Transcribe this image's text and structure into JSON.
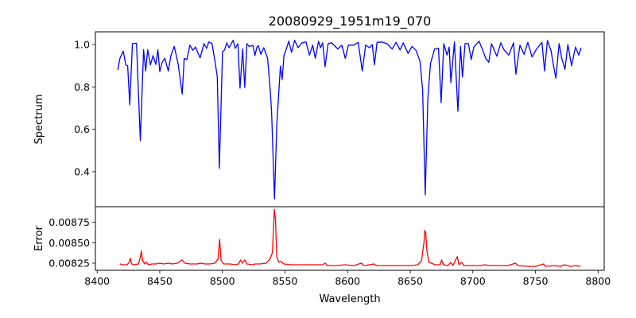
{
  "chart_data": [
    {
      "type": "line",
      "title": "20080929_1951m19_070",
      "xlabel": "",
      "ylabel": "Spectrum",
      "xlim": [
        8398.6,
        8804.9
      ],
      "ylim": [
        0.235,
        1.06
      ],
      "grid": false,
      "color": "#0000ff",
      "yticks": [
        0.4,
        0.6,
        0.8,
        1.0
      ],
      "ytick_labels": [
        "0.4",
        "0.6",
        "0.8",
        "1.0"
      ],
      "series": [
        {
          "name": "Spectrum",
          "x": [
            8416.5,
            8418.2,
            8420.8,
            8422.9,
            8424.4,
            8426.0,
            8428.2,
            8431.4,
            8434.5,
            8437.1,
            8438.7,
            8440.4,
            8442.5,
            8444.7,
            8446.8,
            8448.5,
            8450.0,
            8451.9,
            8454.0,
            8456.8,
            8458.9,
            8461.6,
            8464.6,
            8467.9,
            8469.5,
            8471.6,
            8474.1,
            8476.4,
            8478.5,
            8482.2,
            8485.3,
            8487.4,
            8489.1,
            8491.7,
            8494.4,
            8495.9,
            8497.6,
            8500.1,
            8501.8,
            8503.5,
            8505.4,
            8508.6,
            8510.3,
            8512.4,
            8514.1,
            8516.2,
            8517.9,
            8519.6,
            8521.3,
            8524.4,
            8526.0,
            8527.6,
            8528.7,
            8530.8,
            8533.0,
            8536.1,
            8538.2,
            8539.3,
            8541.6,
            8543.5,
            8546.3,
            8547.7,
            8549.2,
            8551.4,
            8553.0,
            8555.2,
            8557.7,
            8560.4,
            8563.6,
            8566.8,
            8569.5,
            8572.1,
            8574.2,
            8576.8,
            8578.4,
            8580.1,
            8582.0,
            8584.4,
            8587.3,
            8592.2,
            8595.4,
            8598.1,
            8600.6,
            8604.9,
            8608.5,
            8611.7,
            8614.4,
            8617.6,
            8619.7,
            8621.4,
            8623.5,
            8627.1,
            8631.4,
            8635.6,
            8638.7,
            8641.9,
            8644.4,
            8648.3,
            8651.4,
            8654.6,
            8657.8,
            8659.9,
            8662.0,
            8664.1,
            8666.2,
            8669.5,
            8672.6,
            8674.7,
            8676.8,
            8679.4,
            8681.1,
            8682.5,
            8685.3,
            8688.1,
            8690.2,
            8691.7,
            8693.8,
            8696.5,
            8698.7,
            8700.8,
            8705.0,
            8707.9,
            8710.3,
            8712.8,
            8714.9,
            8719.2,
            8722.3,
            8724.9,
            8728.7,
            8732.5,
            8734.4,
            8737.6,
            8740.9,
            8743.9,
            8747.3,
            8750.9,
            8755.2,
            8757.3,
            8759.6,
            8762.5,
            8763.8,
            8766.3,
            8768.9,
            8771.0,
            8773.6,
            8775.9,
            8778.8,
            8782.0,
            8784.6,
            8786.5
          ],
          "y": [
            0.88,
            0.935,
            0.969,
            0.904,
            0.9,
            0.716,
            1.004,
            1.006,
            0.547,
            0.975,
            0.875,
            0.975,
            0.904,
            0.948,
            0.906,
            0.975,
            0.872,
            0.916,
            0.935,
            0.875,
            0.948,
            0.991,
            0.91,
            0.766,
            0.935,
            0.929,
            0.997,
            0.973,
            0.988,
            0.937,
            1.004,
            0.982,
            1.012,
            1.004,
            0.91,
            0.847,
            0.416,
            0.966,
            0.975,
            1.008,
            0.985,
            1.02,
            0.982,
            1.004,
            0.794,
            0.979,
            0.797,
            1.004,
            0.991,
            0.995,
            0.948,
            0.988,
            0.995,
            0.954,
            0.985,
            0.935,
            0.785,
            0.685,
            0.272,
            0.622,
            0.898,
            0.835,
            0.948,
            0.985,
            1.016,
            0.963,
            1.02,
            0.985,
            1.008,
            1.012,
            0.95,
            0.997,
            0.935,
            1.015,
            0.985,
            1.008,
            0.895,
            1.004,
            1.008,
            0.979,
            0.997,
            0.935,
            0.997,
            0.997,
            1.01,
            0.875,
            0.997,
            0.985,
            1.0,
            0.904,
            1.01,
            1.012,
            1.004,
            0.979,
            1.01,
            0.975,
            1.008,
            0.958,
            0.991,
            0.973,
            0.922,
            0.785,
            0.291,
            0.748,
            0.91,
            0.979,
            0.982,
            0.725,
            1.004,
            0.95,
            0.988,
            0.82,
            1.012,
            0.685,
            0.991,
            0.847,
            1.004,
            1.004,
            0.929,
            0.988,
            1.016,
            0.973,
            0.935,
            0.916,
            1.004,
            0.945,
            1.008,
            0.975,
            0.95,
            1.008,
            0.86,
            0.997,
            0.954,
            1.01,
            0.941,
            0.979,
            1.01,
            0.875,
            1.019,
            0.97,
            0.92,
            0.841,
            1.004,
            0.935,
            0.883,
            1.0,
            0.9,
            0.988,
            0.95,
            0.985
          ]
        }
      ]
    },
    {
      "type": "line",
      "title": "",
      "xlabel": "Wavelength",
      "ylabel": "Error",
      "xlim": [
        8398.6,
        8804.9
      ],
      "ylim": [
        0.008162,
        0.008942
      ],
      "grid": false,
      "color": "#ff0000",
      "xticks": [
        8400,
        8450,
        8500,
        8550,
        8600,
        8650,
        8700,
        8750,
        8800
      ],
      "xtick_labels": [
        "8400",
        "8450",
        "8500",
        "8550",
        "8600",
        "8650",
        "8700",
        "8750",
        "8800"
      ],
      "yticks": [
        0.00825,
        0.0085,
        0.00875
      ],
      "ytick_labels": [
        "0.00825",
        "0.00850",
        "0.00875"
      ],
      "series": [
        {
          "name": "Error",
          "x": [
            8418,
            8421,
            8424,
            8425.5,
            8426.5,
            8427.5,
            8430,
            8433,
            8434.5,
            8435.3,
            8436.3,
            8438,
            8439,
            8441,
            8444,
            8447,
            8450,
            8453,
            8457,
            8460,
            8464,
            8468,
            8470,
            8474,
            8480,
            8483,
            8486,
            8490,
            8494,
            8496.5,
            8497.8,
            8499,
            8501,
            8506,
            8510,
            8513,
            8514.5,
            8516,
            8518,
            8519.5,
            8524,
            8526,
            8530,
            8535,
            8538,
            8540,
            8541.5,
            8542.3,
            8543.5,
            8545,
            8547,
            8549,
            8555,
            8560,
            8566,
            8570,
            8575,
            8580,
            8582,
            8584,
            8590,
            8598,
            8605,
            8611,
            8613,
            8621,
            8623,
            8630,
            8640,
            8650,
            8656,
            8659,
            8661,
            8661.7,
            8662.4,
            8663.3,
            8665,
            8670,
            8674,
            8675,
            8676.5,
            8680,
            8682.5,
            8684,
            8687.5,
            8689,
            8691,
            8693,
            8700,
            8705,
            8710,
            8713,
            8720,
            8728,
            8734,
            8736,
            8745,
            8750,
            8756.5,
            8758,
            8765,
            8770,
            8773,
            8778,
            8782,
            8786
          ],
          "y": [
            0.00824,
            0.00823,
            0.00823,
            0.00826,
            0.00831,
            0.00824,
            0.00823,
            0.00824,
            0.00832,
            0.0084,
            0.00828,
            0.00824,
            0.00826,
            0.00823,
            0.00824,
            0.00824,
            0.00825,
            0.00824,
            0.00825,
            0.00824,
            0.00825,
            0.00829,
            0.00825,
            0.00824,
            0.00824,
            0.00825,
            0.00824,
            0.00824,
            0.00825,
            0.0083,
            0.00854,
            0.00828,
            0.00824,
            0.00824,
            0.00823,
            0.00824,
            0.00829,
            0.00825,
            0.00829,
            0.00824,
            0.00823,
            0.00824,
            0.00824,
            0.00825,
            0.0083,
            0.00838,
            0.00891,
            0.0088,
            0.00833,
            0.00826,
            0.00827,
            0.00824,
            0.00823,
            0.00823,
            0.00823,
            0.00823,
            0.00823,
            0.00823,
            0.00825,
            0.00822,
            0.00822,
            0.00823,
            0.00822,
            0.00825,
            0.00822,
            0.00824,
            0.00822,
            0.00822,
            0.00822,
            0.00822,
            0.00823,
            0.00828,
            0.0085,
            0.00865,
            0.00862,
            0.0084,
            0.00826,
            0.00823,
            0.00823,
            0.00829,
            0.00823,
            0.00822,
            0.00826,
            0.00822,
            0.00833,
            0.00823,
            0.00826,
            0.00822,
            0.00822,
            0.00822,
            0.00823,
            0.00822,
            0.00822,
            0.00822,
            0.00825,
            0.00822,
            0.00821,
            0.00821,
            0.00824,
            0.00821,
            0.00822,
            0.00821,
            0.00823,
            0.00821,
            0.00822,
            0.00821
          ]
        }
      ]
    }
  ]
}
